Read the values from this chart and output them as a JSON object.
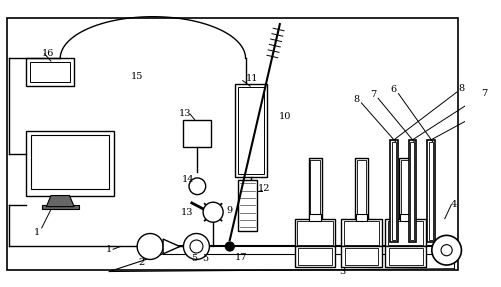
{
  "bg_color": "#ffffff",
  "line_color": "#000000",
  "fig_width": 5.02,
  "fig_height": 2.87,
  "dpi": 100
}
